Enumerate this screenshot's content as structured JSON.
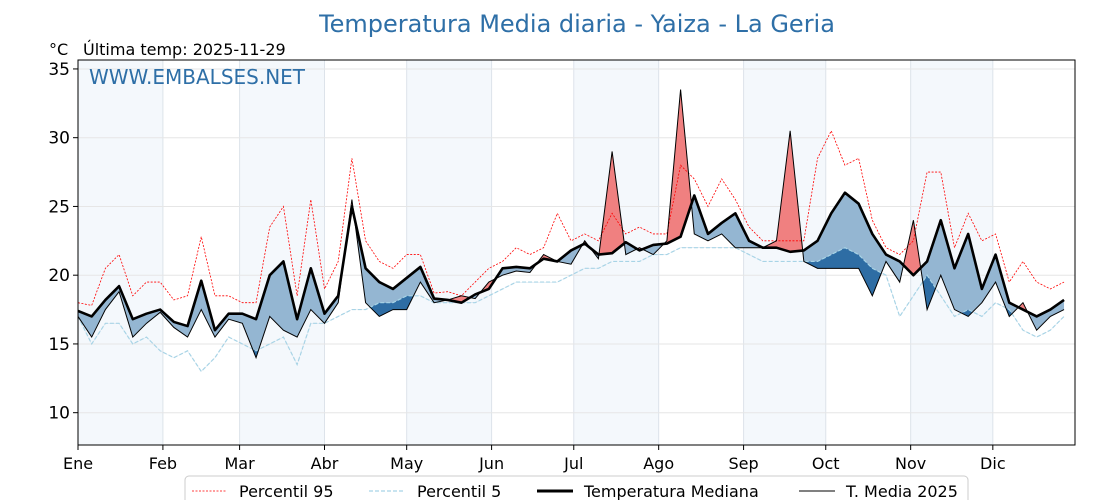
{
  "chart_data": {
    "type": "line",
    "title": "Temperatura Media diaria - Yaiza - La Geria",
    "ylabel": "°C",
    "subtitle": "Última temp: 2025-11-29",
    "watermark": "WWW.EMBALSES.NET",
    "ylim": [
      7.65,
      35.65
    ],
    "xlim": [
      0,
      364
    ],
    "yticks": [
      10,
      15,
      20,
      25,
      30,
      35
    ],
    "months": [
      {
        "label": "Ene",
        "day": 0
      },
      {
        "label": "Feb",
        "day": 31
      },
      {
        "label": "Mar",
        "day": 59
      },
      {
        "label": "Abr",
        "day": 90
      },
      {
        "label": "May",
        "day": 120
      },
      {
        "label": "Jun",
        "day": 151
      },
      {
        "label": "Jul",
        "day": 181
      },
      {
        "label": "Ago",
        "day": 212
      },
      {
        "label": "Sep",
        "day": 243
      },
      {
        "label": "Oct",
        "day": 273
      },
      {
        "label": "Nov",
        "day": 304
      },
      {
        "label": "Dic",
        "day": 334
      }
    ],
    "grid": true,
    "legend_position": "bottom-center",
    "x_days": [
      0,
      5,
      10,
      15,
      20,
      25,
      30,
      35,
      40,
      45,
      50,
      55,
      60,
      65,
      70,
      75,
      80,
      85,
      90,
      95,
      100,
      105,
      110,
      115,
      120,
      125,
      130,
      135,
      140,
      145,
      150,
      155,
      160,
      165,
      170,
      175,
      180,
      185,
      190,
      195,
      200,
      205,
      210,
      215,
      220,
      225,
      230,
      235,
      240,
      245,
      250,
      255,
      260,
      265,
      270,
      275,
      280,
      285,
      290,
      295,
      300,
      305,
      310,
      315,
      320,
      325,
      330,
      335,
      340,
      345,
      350,
      355,
      360
    ],
    "series": [
      {
        "name": "Percentil 95",
        "color": "#ff0000",
        "values": [
          18,
          17.8,
          20.5,
          21.5,
          18.5,
          19.5,
          19.5,
          18.2,
          18.5,
          22.8,
          18.5,
          18.5,
          18,
          18,
          23.5,
          25,
          18.5,
          25.5,
          19,
          21,
          28.5,
          22.5,
          21,
          20.5,
          21.5,
          21.5,
          18.7,
          18.8,
          18.5,
          19.5,
          20.5,
          21,
          22,
          21.5,
          22,
          24.5,
          22.5,
          23,
          22.5,
          24.5,
          23,
          23.5,
          23,
          23,
          28,
          27,
          25,
          27,
          25.5,
          23.5,
          22.5,
          22.5,
          22.5,
          22.5,
          28.5,
          30.5,
          28,
          28.5,
          24,
          22,
          21.5,
          22.5,
          27.5,
          27.5,
          22,
          24.5,
          22.5,
          23,
          19.5,
          21,
          19.5,
          19,
          19.5
        ]
      },
      {
        "name": "Percentil 5",
        "color": "#a8d4e6",
        "values": [
          17,
          15,
          16.5,
          16.5,
          15,
          15.5,
          14.5,
          14,
          14.5,
          13,
          14,
          15.5,
          15,
          14.5,
          15,
          15.5,
          13.5,
          16.5,
          16.5,
          17,
          17.5,
          17.5,
          18,
          18,
          18.5,
          18.5,
          18,
          18,
          18,
          18,
          18.5,
          19,
          19.5,
          19.5,
          19.5,
          19.5,
          20,
          20.5,
          20.5,
          21,
          21,
          21,
          21.5,
          21.5,
          22,
          22,
          22,
          22,
          22,
          21.5,
          21,
          21,
          21,
          21,
          21,
          21.5,
          22,
          21.5,
          20.5,
          20,
          17,
          18.5,
          20,
          18.5,
          17,
          17.5,
          17,
          18,
          17.5,
          16,
          15.5,
          16,
          17
        ]
      },
      {
        "name": "Temperatura Mediana",
        "color": "#000000",
        "values": [
          17.4,
          17,
          18.2,
          19.2,
          16.8,
          17.2,
          17.5,
          16.6,
          16.3,
          19.6,
          16,
          17.2,
          17.2,
          16.8,
          20,
          21,
          16.8,
          20.5,
          17.2,
          18.5,
          25,
          20.5,
          19.5,
          19,
          19.8,
          20.6,
          18.3,
          18.2,
          18,
          18.6,
          19,
          20.5,
          20.6,
          20.5,
          21.2,
          21,
          21.8,
          22.3,
          21.5,
          21.6,
          22.4,
          21.8,
          22.2,
          22.3,
          22.8,
          25.8,
          23,
          23.8,
          24.5,
          22.5,
          22,
          22,
          21.7,
          21.8,
          22.5,
          24.5,
          26,
          25.2,
          23,
          21.5,
          21,
          20,
          21,
          24,
          20.5,
          23,
          19,
          21.5,
          18,
          17.5,
          17,
          17.5,
          18.2
        ]
      },
      {
        "name": "T. Media 2025",
        "color": "#000000",
        "values": [
          17,
          15.5,
          17.5,
          18.8,
          15.5,
          16.5,
          17.3,
          16.2,
          15.5,
          17.5,
          15.5,
          16.8,
          16.5,
          14,
          17,
          16,
          15.5,
          17.5,
          16.5,
          18,
          25.5,
          18,
          17,
          17.5,
          17.5,
          19.5,
          18,
          18.2,
          18.5,
          18.3,
          19.5,
          20,
          20.3,
          20.2,
          21.5,
          21,
          20.8,
          22.5,
          21.2,
          29,
          21.5,
          22,
          21.5,
          22.5,
          33.5,
          23,
          22.5,
          23,
          22,
          22,
          22,
          22.5,
          30.5,
          21,
          20.5,
          20.5,
          20.5,
          20.5,
          18.5,
          21,
          19.5,
          24,
          17.5,
          20,
          17.5,
          17,
          18,
          19.5,
          17,
          18,
          16,
          17,
          17.5
        ]
      }
    ],
    "fill_colors": {
      "above": "#f08080",
      "below": "#94b6d2",
      "below_p5": "#2e6da4"
    },
    "legend": [
      "Percentil 95",
      "Percentil 5",
      "Temperatura Mediana",
      "T. Media 2025"
    ]
  }
}
